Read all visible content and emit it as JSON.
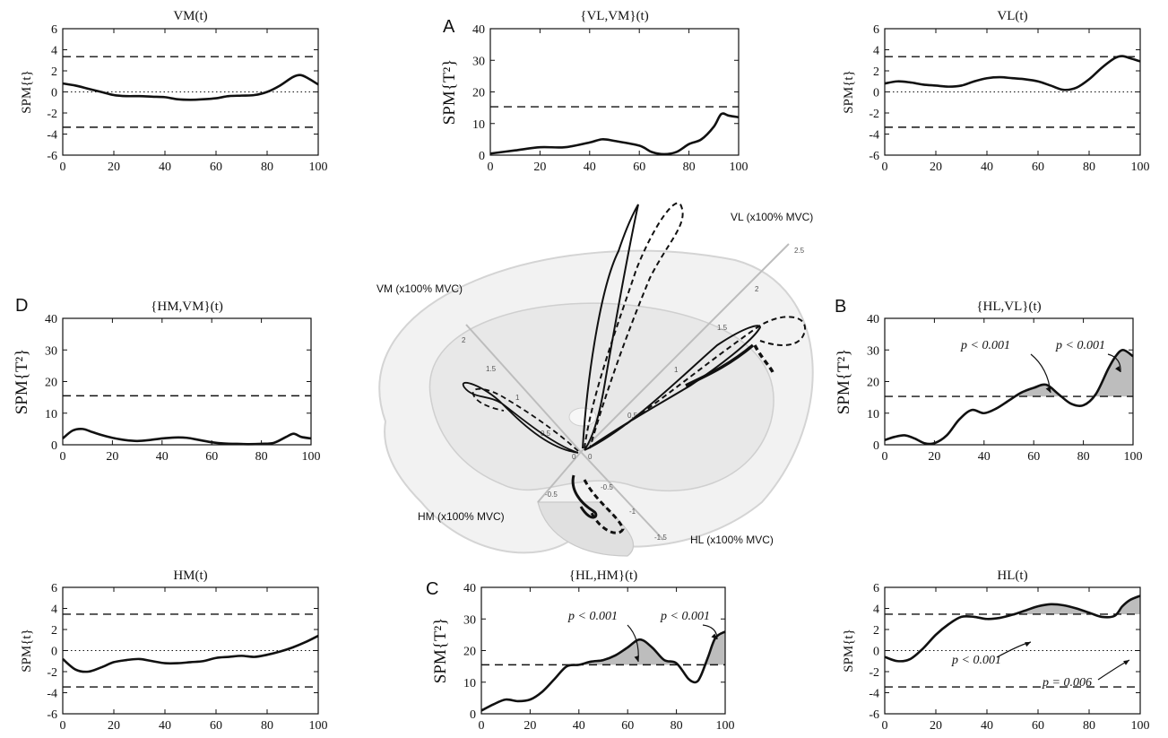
{
  "figure": {
    "panel_letters": [
      "A",
      "B",
      "C",
      "D"
    ],
    "center_axes": {
      "vl": "VL (x100% MVC)",
      "vm": "VM (x100% MVC)",
      "hm": "HM (x100% MVC)",
      "hl": "HL (x100% MVC)",
      "vl_ticks": [
        "0.5",
        "1",
        "1.5",
        "2",
        "2.5"
      ],
      "vm_ticks": [
        "0.5",
        "1",
        "1.5",
        "2"
      ],
      "hm_ticks": [
        "0",
        "-0.5"
      ],
      "hl_ticks": [
        "0",
        "-0.5",
        "-1",
        "-1.5"
      ]
    },
    "colors": {
      "line": "#111111",
      "shade": "#bdbdbd",
      "anatomy": "#d9d9d9"
    }
  },
  "chart_data": [
    {
      "id": "vm",
      "type": "line",
      "title": "VM(t)",
      "ylabel": "SPM{t}",
      "xlim": [
        0,
        100
      ],
      "ylim": [
        -6,
        6
      ],
      "yticks": [
        "6",
        "4",
        "2",
        "0",
        "-2",
        "-4",
        "-6"
      ],
      "xticks": [
        "0",
        "20",
        "40",
        "60",
        "80",
        "100"
      ],
      "threshold": [
        3.35,
        -3.35
      ],
      "zero_line": true,
      "x": [
        0,
        5,
        10,
        15,
        20,
        25,
        30,
        35,
        40,
        45,
        50,
        55,
        60,
        65,
        70,
        75,
        80,
        85,
        90,
        93,
        96,
        100
      ],
      "y": [
        0.8,
        0.6,
        0.3,
        0.0,
        -0.3,
        -0.4,
        -0.4,
        -0.45,
        -0.5,
        -0.7,
        -0.75,
        -0.7,
        -0.6,
        -0.4,
        -0.35,
        -0.3,
        0.0,
        0.6,
        1.4,
        1.6,
        1.3,
        0.7
      ]
    },
    {
      "id": "vlvm",
      "type": "line",
      "title": "{VL,VM}(t)",
      "ylabel": "SPM{T²}",
      "xlim": [
        0,
        100
      ],
      "ylim": [
        0,
        40
      ],
      "yticks": [
        "40",
        "30",
        "20",
        "10",
        "0"
      ],
      "xticks": [
        "0",
        "20",
        "40",
        "60",
        "80",
        "100"
      ],
      "threshold": [
        15.3
      ],
      "x": [
        0,
        10,
        20,
        30,
        40,
        45,
        50,
        60,
        65,
        70,
        75,
        80,
        85,
        90,
        93,
        96,
        100
      ],
      "y": [
        0.5,
        1.5,
        2.5,
        2.5,
        4.0,
        5.0,
        4.5,
        3.0,
        1.0,
        0.3,
        1.0,
        3.5,
        5.0,
        9.0,
        13.0,
        12.5,
        12.0
      ]
    },
    {
      "id": "vl",
      "type": "line",
      "title": "VL(t)",
      "ylabel": "SPM{t}",
      "xlim": [
        0,
        100
      ],
      "ylim": [
        -6,
        6
      ],
      "yticks": [
        "6",
        "4",
        "2",
        "0",
        "-2",
        "-4",
        "-6"
      ],
      "xticks": [
        "0",
        "20",
        "40",
        "60",
        "80",
        "100"
      ],
      "threshold": [
        3.35,
        -3.35
      ],
      "zero_line": true,
      "x": [
        0,
        5,
        10,
        15,
        20,
        25,
        30,
        35,
        40,
        45,
        50,
        55,
        60,
        65,
        70,
        75,
        80,
        85,
        90,
        93,
        96,
        100
      ],
      "y": [
        0.8,
        1.0,
        0.9,
        0.7,
        0.6,
        0.5,
        0.6,
        1.0,
        1.3,
        1.4,
        1.3,
        1.2,
        1.0,
        0.6,
        0.2,
        0.4,
        1.2,
        2.3,
        3.2,
        3.4,
        3.2,
        2.9
      ]
    },
    {
      "id": "hmvm",
      "type": "line",
      "title": "{HM,VM}(t)",
      "ylabel": "SPM{T²}",
      "xlim": [
        0,
        100
      ],
      "ylim": [
        0,
        40
      ],
      "yticks": [
        "40",
        "30",
        "20",
        "10",
        "0"
      ],
      "xticks": [
        "0",
        "20",
        "40",
        "60",
        "80",
        "100"
      ],
      "threshold": [
        15.5
      ],
      "x": [
        0,
        4,
        8,
        12,
        16,
        20,
        25,
        30,
        35,
        40,
        45,
        50,
        55,
        60,
        65,
        70,
        75,
        80,
        85,
        90,
        93,
        96,
        100
      ],
      "y": [
        2.0,
        4.5,
        5.0,
        4.0,
        3.0,
        2.2,
        1.5,
        1.2,
        1.5,
        2.0,
        2.3,
        2.2,
        1.5,
        0.8,
        0.4,
        0.3,
        0.2,
        0.3,
        0.6,
        2.5,
        3.5,
        2.5,
        2.0
      ]
    },
    {
      "id": "hlvl",
      "type": "line",
      "title": "{HL,VL}(t)",
      "ylabel": "SPM{T²}",
      "xlim": [
        0,
        100
      ],
      "ylim": [
        0,
        40
      ],
      "yticks": [
        "40",
        "30",
        "20",
        "10",
        "0"
      ],
      "xticks": [
        "0",
        "20",
        "40",
        "60",
        "80",
        "100"
      ],
      "threshold": [
        15.3
      ],
      "x": [
        0,
        4,
        8,
        12,
        16,
        20,
        25,
        30,
        35,
        40,
        45,
        50,
        55,
        60,
        65,
        70,
        75,
        80,
        85,
        90,
        93,
        96,
        100
      ],
      "y": [
        1.5,
        2.5,
        3.0,
        2.0,
        0.5,
        0.5,
        3.0,
        8.0,
        11.0,
        10.0,
        11.5,
        14.0,
        16.5,
        18.0,
        19.0,
        16.0,
        13.0,
        12.5,
        16.0,
        24.0,
        28.0,
        30.0,
        28.0
      ],
      "annotations": [
        "p < 0.001",
        "p < 0.001"
      ]
    },
    {
      "id": "hlhm",
      "type": "line",
      "title": "{HL,HM}(t)",
      "ylabel": "SPM{T²}",
      "xlim": [
        0,
        100
      ],
      "ylim": [
        0,
        40
      ],
      "yticks": [
        "40",
        "30",
        "20",
        "10",
        "0"
      ],
      "xticks": [
        "0",
        "20",
        "40",
        "60",
        "80",
        "100"
      ],
      "threshold": [
        15.5
      ],
      "x": [
        0,
        5,
        10,
        15,
        20,
        25,
        30,
        35,
        40,
        45,
        50,
        55,
        60,
        65,
        70,
        75,
        80,
        85,
        88,
        90,
        93,
        96,
        100
      ],
      "y": [
        1.0,
        3.0,
        4.5,
        4.0,
        4.5,
        7.0,
        11.0,
        15.0,
        15.5,
        16.5,
        17.0,
        18.5,
        21.0,
        23.5,
        21.0,
        17.0,
        16.0,
        11.0,
        10.0,
        12.0,
        18.0,
        24.0,
        26.0
      ],
      "annotations": [
        "p < 0.001",
        "p < 0.001"
      ]
    },
    {
      "id": "hm",
      "type": "line",
      "title": "HM(t)",
      "ylabel": "SPM{t}",
      "xlim": [
        0,
        100
      ],
      "ylim": [
        -6,
        6
      ],
      "yticks": [
        "6",
        "4",
        "2",
        "0",
        "-2",
        "-4",
        "-6"
      ],
      "xticks": [
        "0",
        "20",
        "40",
        "60",
        "80",
        "100"
      ],
      "threshold": [
        3.45,
        -3.45
      ],
      "zero_line": true,
      "x": [
        0,
        5,
        10,
        15,
        20,
        25,
        30,
        35,
        40,
        45,
        50,
        55,
        60,
        65,
        70,
        75,
        80,
        85,
        90,
        95,
        100
      ],
      "y": [
        -0.8,
        -1.8,
        -2.0,
        -1.6,
        -1.1,
        -0.9,
        -0.8,
        -1.0,
        -1.2,
        -1.2,
        -1.1,
        -1.0,
        -0.7,
        -0.6,
        -0.5,
        -0.6,
        -0.4,
        -0.1,
        0.3,
        0.8,
        1.4
      ]
    },
    {
      "id": "hl",
      "type": "line",
      "title": "HL(t)",
      "ylabel": "SPM{t}",
      "xlim": [
        0,
        100
      ],
      "ylim": [
        -6,
        6
      ],
      "yticks": [
        "6",
        "4",
        "2",
        "0",
        "-2",
        "-4",
        "-6"
      ],
      "xticks": [
        "0",
        "20",
        "40",
        "60",
        "80",
        "100"
      ],
      "threshold": [
        3.45,
        -3.45
      ],
      "zero_line": true,
      "x": [
        0,
        5,
        10,
        15,
        20,
        25,
        30,
        35,
        40,
        45,
        50,
        55,
        60,
        65,
        70,
        75,
        80,
        85,
        90,
        93,
        96,
        100
      ],
      "y": [
        -0.6,
        -1.0,
        -0.8,
        0.2,
        1.5,
        2.5,
        3.2,
        3.2,
        3.0,
        3.1,
        3.4,
        3.8,
        4.2,
        4.4,
        4.3,
        4.0,
        3.6,
        3.2,
        3.3,
        4.2,
        4.8,
        5.2
      ],
      "annotations": [
        "p < 0.001",
        "p = 0.006"
      ]
    }
  ]
}
